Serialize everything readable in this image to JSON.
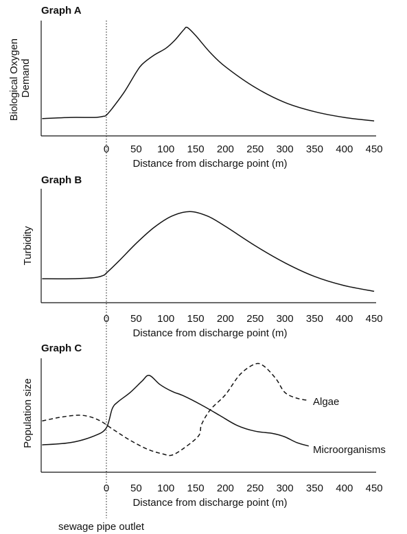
{
  "marker": {
    "label": "sewage pipe outlet",
    "x": 0
  },
  "chart_data": [
    {
      "type": "line",
      "title": "Graph A",
      "xlabel": "Distance from discharge point (m)",
      "ylabel": "Biological Oxygen Demand",
      "x_ticks": [
        0,
        50,
        100,
        150,
        200,
        250,
        300,
        350,
        400,
        450
      ],
      "xlim": [
        -108,
        450
      ],
      "ylim": [
        0,
        100
      ],
      "grid": false,
      "series": [
        {
          "style": "solid",
          "points": [
            [
              -108,
              15
            ],
            [
              -60,
              16
            ],
            [
              -20,
              16
            ],
            [
              -5,
              17
            ],
            [
              0,
              18
            ],
            [
              10,
              24
            ],
            [
              30,
              38
            ],
            [
              50,
              55
            ],
            [
              60,
              62
            ],
            [
              80,
              70
            ],
            [
              100,
              76
            ],
            [
              115,
              83
            ],
            [
              130,
              92
            ],
            [
              136,
              94
            ],
            [
              150,
              87
            ],
            [
              175,
              72
            ],
            [
              200,
              60
            ],
            [
              250,
              42
            ],
            [
              300,
              29
            ],
            [
              350,
              21
            ],
            [
              400,
              16
            ],
            [
              450,
              13
            ]
          ]
        }
      ]
    },
    {
      "type": "line",
      "title": "Graph B",
      "xlabel": "Distance from discharge point (m)",
      "ylabel": "Turbidity",
      "x_ticks": [
        0,
        50,
        100,
        150,
        200,
        250,
        300,
        350,
        400,
        450
      ],
      "xlim": [
        -108,
        450
      ],
      "ylim": [
        0,
        100
      ],
      "grid": false,
      "series": [
        {
          "style": "solid",
          "points": [
            [
              -108,
              21
            ],
            [
              -60,
              21
            ],
            [
              -20,
              22
            ],
            [
              -5,
              24
            ],
            [
              0,
              26
            ],
            [
              20,
              36
            ],
            [
              50,
              52
            ],
            [
              80,
              66
            ],
            [
              110,
              76
            ],
            [
              140,
              80
            ],
            [
              170,
              76
            ],
            [
              200,
              67
            ],
            [
              250,
              50
            ],
            [
              300,
              35
            ],
            [
              350,
              23
            ],
            [
              400,
              15
            ],
            [
              450,
              10
            ]
          ]
        }
      ]
    },
    {
      "type": "line",
      "title": "Graph C",
      "xlabel": "Distance from discharge point (m)",
      "ylabel": "Population size",
      "x_ticks": [
        0,
        50,
        100,
        150,
        200,
        250,
        300,
        350,
        400,
        450
      ],
      "xlim": [
        -108,
        450
      ],
      "ylim": [
        0,
        100
      ],
      "grid": false,
      "series": [
        {
          "name": "Algae",
          "style": "dashed",
          "points": [
            [
              -108,
              45
            ],
            [
              -80,
              48
            ],
            [
              -50,
              50
            ],
            [
              -30,
              49
            ],
            [
              -10,
              45
            ],
            [
              10,
              38
            ],
            [
              40,
              28
            ],
            [
              70,
              20
            ],
            [
              95,
              16
            ],
            [
              110,
              15
            ],
            [
              130,
              21
            ],
            [
              155,
              32
            ],
            [
              160,
              42
            ],
            [
              175,
              55
            ],
            [
              200,
              68
            ],
            [
              225,
              86
            ],
            [
              250,
              95
            ],
            [
              265,
              93
            ],
            [
              285,
              82
            ],
            [
              300,
              70
            ],
            [
              320,
              65
            ],
            [
              340,
              63
            ]
          ]
        },
        {
          "name": "Microorganisms",
          "style": "solid",
          "points": [
            [
              -108,
              24
            ],
            [
              -60,
              26
            ],
            [
              -20,
              32
            ],
            [
              0,
              39
            ],
            [
              10,
              56
            ],
            [
              20,
              62
            ],
            [
              40,
              70
            ],
            [
              60,
              80
            ],
            [
              72,
              85
            ],
            [
              90,
              77
            ],
            [
              110,
              71
            ],
            [
              130,
              67
            ],
            [
              160,
              59
            ],
            [
              190,
              50
            ],
            [
              220,
              41
            ],
            [
              250,
              36
            ],
            [
              280,
              34
            ],
            [
              300,
              31
            ],
            [
              320,
              26
            ],
            [
              340,
              23
            ]
          ]
        }
      ]
    }
  ]
}
